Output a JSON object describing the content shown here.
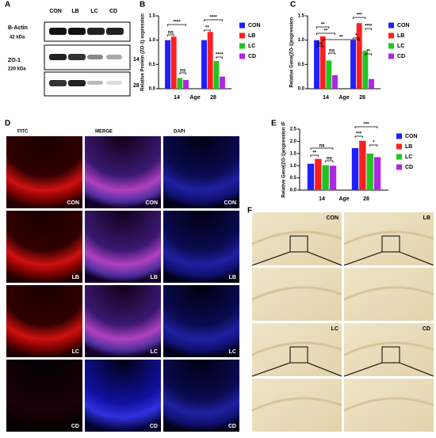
{
  "panel_letters": [
    "A",
    "B",
    "C",
    "D",
    "E",
    "F"
  ],
  "blot": {
    "lanes": [
      "CON",
      "LB",
      "LC",
      "CD"
    ],
    "rows": [
      {
        "label": "B-Actin",
        "size": "42 kDa"
      },
      {
        "label": "ZO-1",
        "size": "220 kDa"
      }
    ],
    "ages": [
      "14",
      "28"
    ]
  },
  "microscopy": {
    "columns": [
      "FITC",
      "MERGE",
      "DAPI"
    ],
    "rows": [
      "CON",
      "LB",
      "LC",
      "CD"
    ]
  },
  "ihc": {
    "labels": [
      "CON",
      "LB",
      "LC",
      "CD"
    ]
  },
  "chart_data": [
    {
      "type": "bar",
      "y_label": "Relative Protein (ZO-1) expression",
      "x_label": "Age",
      "categories": [
        "14",
        "28"
      ],
      "series": [
        {
          "name": "CON",
          "color": "#1f1fff",
          "values": [
            1.0,
            1.0
          ]
        },
        {
          "name": "LB",
          "color": "#ff1f1f",
          "values": [
            1.07,
            1.17
          ]
        },
        {
          "name": "LC",
          "color": "#22c422",
          "values": [
            0.22,
            0.57
          ]
        },
        {
          "name": "CD",
          "color": "#b025e6",
          "values": [
            0.18,
            0.25
          ]
        }
      ],
      "ylim": [
        0,
        1.5
      ],
      "yticks": [
        {
          "value": 0,
          "label": "0.0"
        },
        {
          "value": 0.5,
          "label": "0.5"
        },
        {
          "value": 1,
          "label": "1.0"
        },
        {
          "value": 1.5,
          "label": "1.5"
        }
      ],
      "annotations": [
        "ns",
        "****",
        "ns",
        "****",
        "**",
        "****"
      ]
    },
    {
      "type": "bar",
      "y_label": "Relative Gene(ZO-1)expression",
      "x_label": "Age",
      "categories": [
        "14",
        "28"
      ],
      "series": [
        {
          "name": "CON",
          "color": "#1f1fff",
          "values": [
            1.0,
            1.0
          ]
        },
        {
          "name": "LB",
          "color": "#ff1f1f",
          "values": [
            1.08,
            1.35
          ]
        },
        {
          "name": "LC",
          "color": "#22c422",
          "values": [
            0.58,
            0.78
          ]
        },
        {
          "name": "CD",
          "color": "#b025e6",
          "values": [
            0.28,
            0.2
          ]
        }
      ],
      "ylim": [
        0,
        1.5
      ],
      "yticks": [
        {
          "value": 0,
          "label": "0.0"
        },
        {
          "value": 0.5,
          "label": "0.5"
        },
        {
          "value": 1,
          "label": "1.0"
        },
        {
          "value": 1.5,
          "label": "1.5"
        }
      ],
      "annotations": [
        "**",
        "**",
        "ns",
        "**",
        "ns",
        "***",
        "****",
        "*",
        "**"
      ]
    },
    {
      "type": "bar",
      "y_label": "Relative Gene(ZO-1)expression IF",
      "x_label": "Age",
      "categories": [
        "14",
        "28"
      ],
      "series": [
        {
          "name": "CON",
          "color": "#1f1fff",
          "values": [
            1.08,
            1.72
          ]
        },
        {
          "name": "LB",
          "color": "#ff1f1f",
          "values": [
            1.28,
            2.02
          ]
        },
        {
          "name": "LC",
          "color": "#22c422",
          "values": [
            1.02,
            1.5
          ]
        },
        {
          "name": "CD",
          "color": "#b025e6",
          "values": [
            1.0,
            1.35
          ]
        }
      ],
      "ylim": [
        0,
        2.5
      ],
      "yticks": [
        {
          "value": 0,
          "label": "0.0"
        },
        {
          "value": 0.5,
          "label": "0.5"
        },
        {
          "value": 1,
          "label": "1.0"
        },
        {
          "value": 1.5,
          "label": "1.5"
        },
        {
          "value": 2,
          "label": "2.0"
        },
        {
          "value": 2.5,
          "label": "2.5"
        }
      ],
      "annotations": [
        "ns",
        "**",
        "ns",
        "***",
        "***",
        "*"
      ]
    }
  ]
}
